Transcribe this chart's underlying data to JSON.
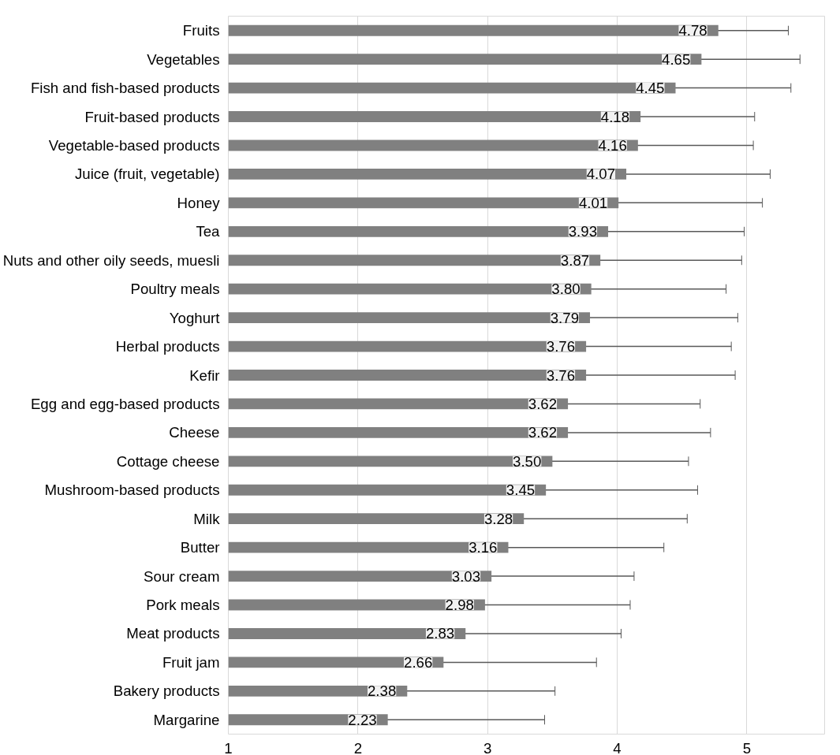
{
  "chart_data": {
    "type": "bar",
    "orientation": "horizontal",
    "categories": [
      "Fruits",
      "Vegetables",
      "Fish and fish-based products",
      "Fruit-based products",
      "Vegetable-based products",
      "Juice (fruit, vegetable)",
      "Honey",
      "Tea",
      "Nuts and other oily seeds, muesli",
      "Poultry meals",
      "Yoghurt",
      "Herbal products",
      "Kefir",
      "Egg and egg-based products",
      "Cheese",
      "Cottage cheese",
      "Mushroom-based products",
      "Milk",
      "Butter",
      "Sour cream",
      "Pork meals",
      "Meat products",
      "Fruit jam",
      "Bakery products",
      "Margarine"
    ],
    "values": [
      4.78,
      4.65,
      4.45,
      4.18,
      4.16,
      4.07,
      4.01,
      3.93,
      3.87,
      3.8,
      3.79,
      3.76,
      3.76,
      3.62,
      3.62,
      3.5,
      3.45,
      3.28,
      3.16,
      3.03,
      2.98,
      2.83,
      2.66,
      2.38,
      2.23
    ],
    "value_labels": [
      "4.78",
      "4.65",
      "4.45",
      "4.18",
      "4.16",
      "4.07",
      "4.01",
      "3.93",
      "3.87",
      "3.80",
      "3.79",
      "3.76",
      "3.76",
      "3.62",
      "3.62",
      "3.50",
      "3.45",
      "3.28",
      "3.16",
      "3.03",
      "2.98",
      "2.83",
      "2.66",
      "2.38",
      "2.23"
    ],
    "errors": [
      0.54,
      0.76,
      0.89,
      0.88,
      0.89,
      1.11,
      1.11,
      1.05,
      1.09,
      1.04,
      1.14,
      1.12,
      1.15,
      1.02,
      1.1,
      1.05,
      1.17,
      1.26,
      1.2,
      1.1,
      1.12,
      1.2,
      1.18,
      1.14,
      1.21
    ],
    "color": "#808080",
    "xlim": [
      1,
      5.6
    ],
    "xticks": [
      1,
      2,
      3,
      4,
      5
    ],
    "grid": "x"
  }
}
